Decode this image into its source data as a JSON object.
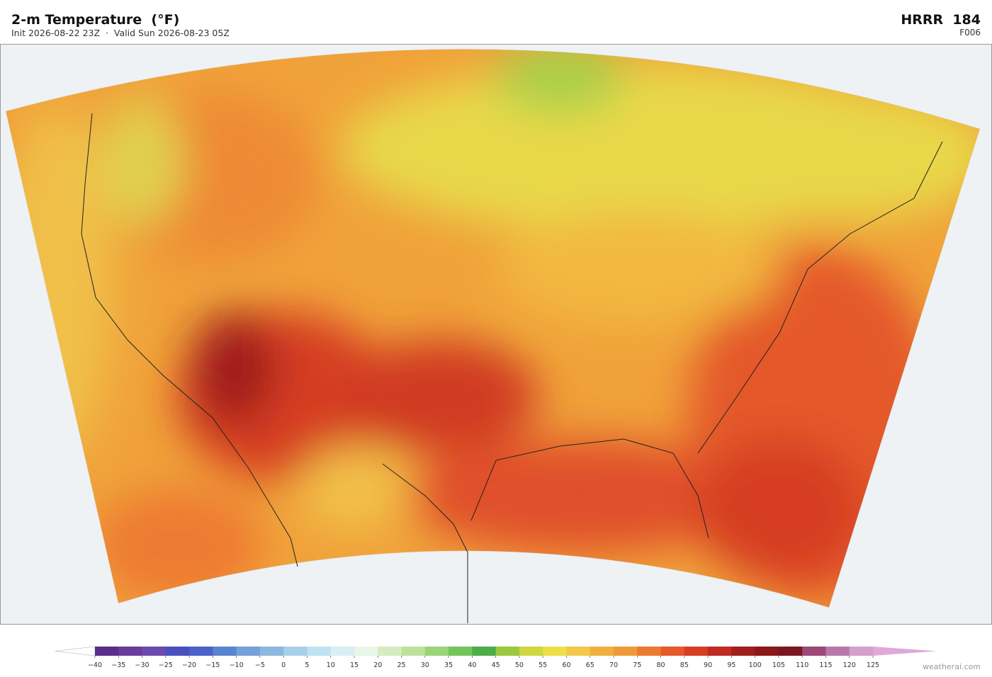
{
  "header": {
    "title": "2-m Temperature  (°F)",
    "subtitle": "Init 2026-08-22 23Z  ·  Valid Sun 2026-08-23 05Z",
    "model": "HRRR  184",
    "forecast_hour": "F006"
  },
  "colorbar": {
    "ticks": [
      {
        "value": -40,
        "label": "−40"
      },
      {
        "value": -35,
        "label": "−35"
      },
      {
        "value": -30,
        "label": "−30"
      },
      {
        "value": -25,
        "label": "−25"
      },
      {
        "value": -20,
        "label": "−20"
      },
      {
        "value": -15,
        "label": "−15"
      },
      {
        "value": -10,
        "label": "−10"
      },
      {
        "value": -5,
        "label": "−5"
      },
      0,
      5,
      10,
      15,
      20,
      25,
      30,
      35,
      40,
      45,
      50,
      55,
      60,
      65,
      70,
      75,
      80,
      85,
      90,
      95,
      100,
      105,
      110,
      115,
      120,
      125
    ],
    "colors": [
      "#5a2d8c",
      "#6a3c9c",
      "#6b4bb0",
      "#4a4fc0",
      "#4b62c8",
      "#5b84d0",
      "#75a0d8",
      "#8cb8e0",
      "#a8d0e8",
      "#c0e2f0",
      "#d8eff4",
      "#e8f6e8",
      "#d4ecc0",
      "#bce29a",
      "#9ad478",
      "#74c45c",
      "#4cae48",
      "#9cc840",
      "#cfd640",
      "#ece048",
      "#f2c84a",
      "#f0b040",
      "#ee9a38",
      "#ea7a30",
      "#e45a2a",
      "#d63e24",
      "#c02a22",
      "#a01e1e",
      "#8a1818",
      "#7a1620",
      "#9c4878",
      "#b878ac",
      "#d4a0cc"
    ],
    "under_color": "#ffffff",
    "over_color": "#e0a8d8"
  },
  "watermark": "weatherai.com"
}
